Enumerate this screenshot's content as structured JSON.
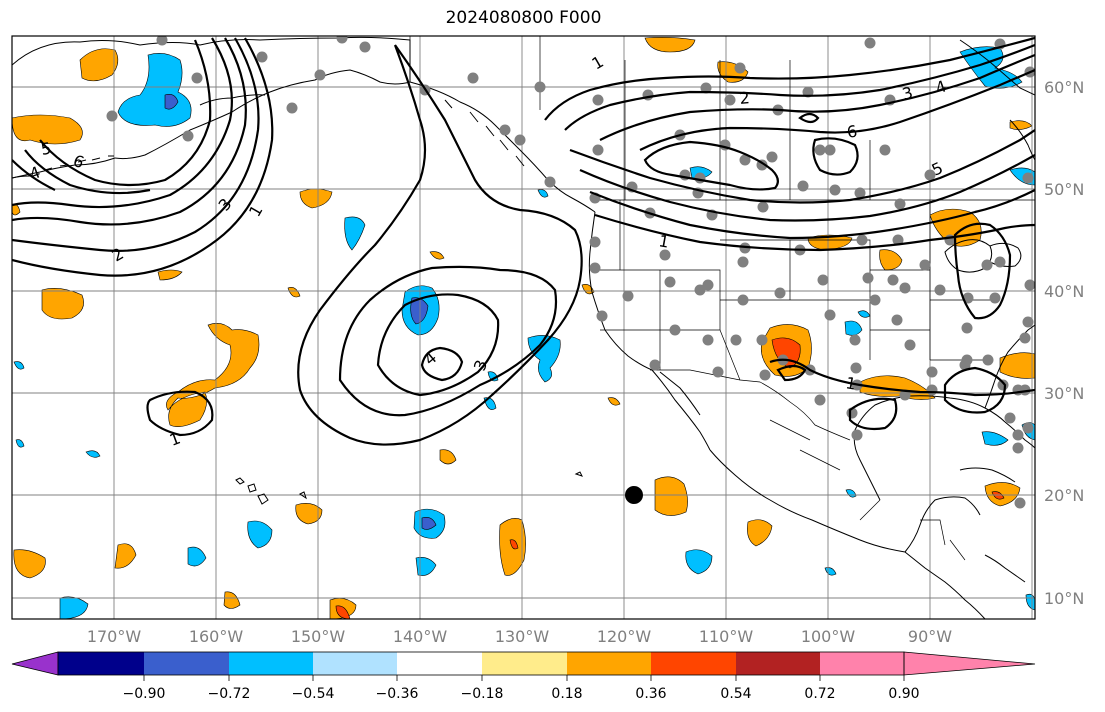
{
  "title": "2024080800 F000",
  "lat_labels": [
    "60°N",
    "50°N",
    "40°N",
    "30°N",
    "20°N",
    "10°N"
  ],
  "lon_labels": [
    "170°W",
    "160°W",
    "150°W",
    "140°W",
    "130°W",
    "120°W",
    "110°W",
    "100°W",
    "90°W"
  ],
  "colorbar": {
    "ticks": [
      "−0.90",
      "−0.72",
      "−0.54",
      "−0.36",
      "−0.18",
      "0.18",
      "0.36",
      "0.54",
      "0.72",
      "0.90"
    ],
    "colors": [
      "#9932cc",
      "#00008b",
      "#3a5fcd",
      "#00bfff",
      "#b0e2ff",
      "#ffffff",
      "#ffec8b",
      "#ffa500",
      "#ff4500",
      "#b22222",
      "#ff82ab"
    ]
  },
  "contour_labels": [
    "1",
    "2",
    "3",
    "4",
    "5",
    "6"
  ],
  "map_colors": {
    "positive": "#ffa500",
    "strong_positive": "#ff4500",
    "negative": "#00bfff",
    "strong_negative": "#3a5fcd",
    "station": "#808080",
    "marker": "#000000"
  }
}
